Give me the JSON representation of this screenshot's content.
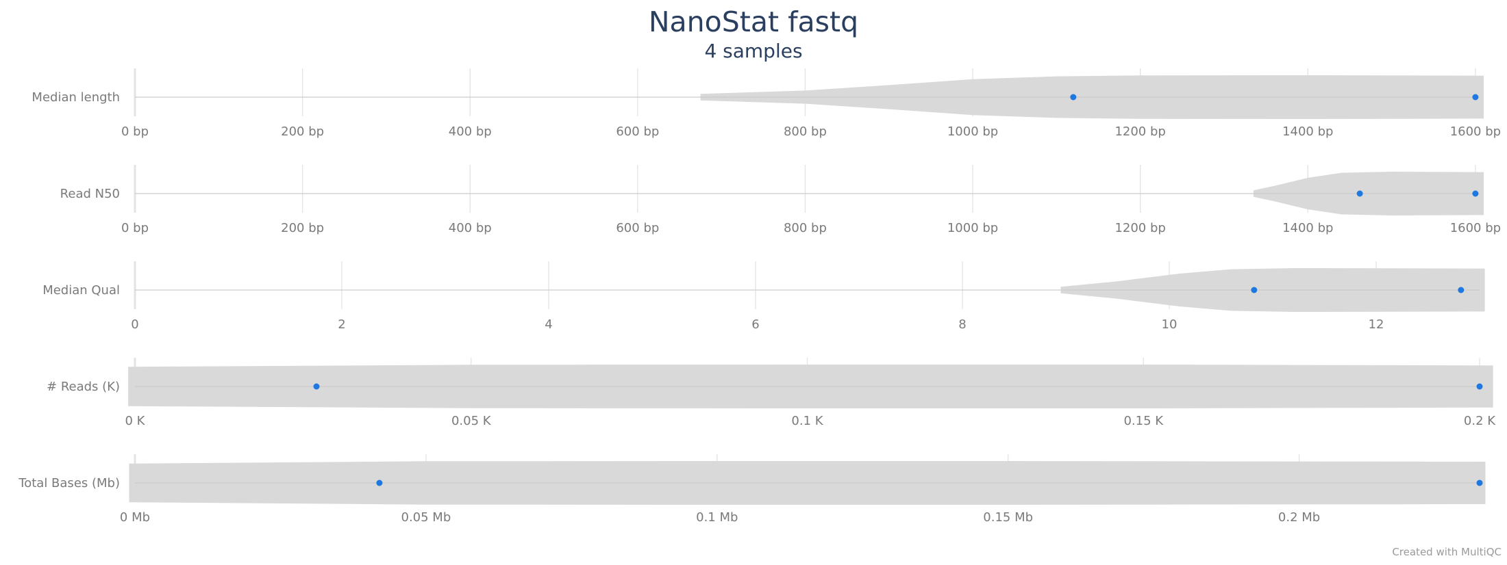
{
  "header": {
    "title": "NanoStat fastq",
    "subtitle": "4 samples"
  },
  "footer": {
    "credit": "Created with MultiQC"
  },
  "chart_data": {
    "type": "violin",
    "colors": {
      "violin": "#d9d9d9",
      "point": "#1f77e0",
      "grid": "#e3e3e3",
      "text": "#7a7a7a",
      "title": "#2a3f5f"
    },
    "panels": [
      {
        "name": "Median length",
        "xlim": [
          0,
          1605
        ],
        "ticks": [
          0,
          200,
          400,
          600,
          800,
          1000,
          1200,
          1400,
          1600
        ],
        "tick_labels": [
          "0 bp",
          "200 bp",
          "400 bp",
          "600 bp",
          "800 bp",
          "1000 bp",
          "1200 bp",
          "1400 bp",
          "1600 bp"
        ],
        "points": [
          1120,
          1600
        ],
        "violin": [
          [
            675,
            0.15
          ],
          [
            800,
            0.3
          ],
          [
            900,
            0.55
          ],
          [
            1000,
            0.82
          ],
          [
            1100,
            0.95
          ],
          [
            1200,
            0.99
          ],
          [
            1400,
            1.0
          ],
          [
            1610,
            0.98
          ]
        ]
      },
      {
        "name": "Read N50",
        "xlim": [
          0,
          1605
        ],
        "ticks": [
          0,
          200,
          400,
          600,
          800,
          1000,
          1200,
          1400,
          1600
        ],
        "tick_labels": [
          "0 bp",
          "200 bp",
          "400 bp",
          "600 bp",
          "800 bp",
          "1000 bp",
          "1200 bp",
          "1400 bp",
          "1600 bp"
        ],
        "points": [
          1462,
          1600
        ],
        "violin": [
          [
            1335,
            0.15
          ],
          [
            1360,
            0.35
          ],
          [
            1400,
            0.72
          ],
          [
            1440,
            0.95
          ],
          [
            1500,
            1.0
          ],
          [
            1610,
            0.98
          ]
        ]
      },
      {
        "name": "Median Qual",
        "xlim": [
          0,
          13
        ],
        "ticks": [
          0,
          2,
          4,
          6,
          8,
          10,
          12
        ],
        "tick_labels": [
          "0",
          "2",
          "4",
          "6",
          "8",
          "10",
          "12"
        ],
        "points": [
          10.82,
          12.82
        ],
        "violin": [
          [
            8.95,
            0.15
          ],
          [
            9.5,
            0.4
          ],
          [
            10.1,
            0.75
          ],
          [
            10.6,
            0.95
          ],
          [
            11.2,
            1.0
          ],
          [
            13.05,
            0.98
          ]
        ]
      },
      {
        "name": "# Reads (K)",
        "xlim": [
          0,
          0.2
        ],
        "ticks": [
          0,
          0.05,
          0.1,
          0.15,
          0.2
        ],
        "tick_labels": [
          "0 K",
          "0.05 K",
          "0.1 K",
          "0.15 K",
          "0.2 K"
        ],
        "points": [
          0.027,
          0.2
        ],
        "violin": [
          [
            -0.001,
            0.9
          ],
          [
            0.05,
            0.99
          ],
          [
            0.1,
            1.0
          ],
          [
            0.15,
            1.0
          ],
          [
            0.202,
            0.96
          ]
        ]
      },
      {
        "name": "Total Bases (Mb)",
        "xlim": [
          0,
          0.231
        ],
        "ticks": [
          0,
          0.05,
          0.1,
          0.15,
          0.2
        ],
        "tick_labels": [
          "0 Mb",
          "0.05 Mb",
          "0.1 Mb",
          "0.15 Mb",
          "0.2 Mb"
        ],
        "points": [
          0.042,
          0.231
        ],
        "violin": [
          [
            -0.001,
            0.88
          ],
          [
            0.05,
            0.99
          ],
          [
            0.1,
            1.0
          ],
          [
            0.15,
            1.0
          ],
          [
            0.232,
            0.97
          ]
        ]
      }
    ]
  }
}
